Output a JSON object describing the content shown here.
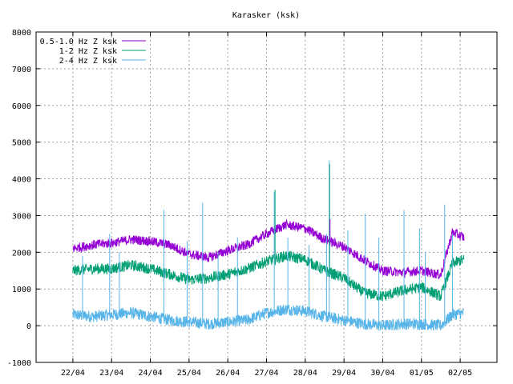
{
  "chart_data": {
    "type": "line",
    "title": "Karasker (ksk)",
    "xlabel": "",
    "ylabel": "",
    "ylim": [
      -1000,
      8000
    ],
    "xlim": [
      "21/04",
      "02/05"
    ],
    "yticks": [
      "-1000",
      "0",
      "1000",
      "2000",
      "3000",
      "4000",
      "5000",
      "6000",
      "7000",
      "8000"
    ],
    "xticks": [
      "22/04",
      "23/04",
      "24/04",
      "25/04",
      "26/04",
      "27/04",
      "28/04",
      "29/04",
      "30/04",
      "01/05",
      "02/05"
    ],
    "grid": true,
    "legend_position": "top-left",
    "x_days_from_start": [
      0.0,
      0.5,
      1.0,
      1.5,
      2.0,
      2.5,
      3.0,
      3.5,
      4.0,
      4.5,
      5.0,
      5.5,
      6.0,
      6.5,
      7.0,
      7.5,
      8.0,
      8.5,
      9.0,
      9.5,
      9.8,
      10.1
    ],
    "series": [
      {
        "name": "0.5-1.0 Hz Z ksk",
        "color": "#9400d3",
        "values": [
          2100,
          2200,
          2250,
          2350,
          2300,
          2200,
          1950,
          1850,
          2050,
          2200,
          2500,
          2750,
          2650,
          2350,
          2150,
          1800,
          1500,
          1450,
          1500,
          1380,
          2550,
          2400
        ]
      },
      {
        "name": "1-2 Hz Z ksk",
        "color": "#009e73",
        "values": [
          1500,
          1550,
          1550,
          1650,
          1550,
          1400,
          1250,
          1300,
          1400,
          1550,
          1750,
          1900,
          1800,
          1500,
          1300,
          900,
          800,
          950,
          1050,
          800,
          1700,
          1800
        ]
      },
      {
        "name": "2-4 Hz Z ksk",
        "color": "#56b4e9",
        "values": [
          300,
          250,
          300,
          350,
          250,
          150,
          100,
          50,
          100,
          150,
          350,
          450,
          400,
          250,
          150,
          50,
          0,
          50,
          50,
          0,
          300,
          350
        ]
      }
    ],
    "spikes": [
      {
        "series": 2,
        "x": 0.25,
        "y": 1900
      },
      {
        "series": 2,
        "x": 0.95,
        "y": 2500
      },
      {
        "series": 2,
        "x": 1.2,
        "y": 2000
      },
      {
        "series": 2,
        "x": 2.35,
        "y": 3150
      },
      {
        "series": 2,
        "x": 2.95,
        "y": 2300
      },
      {
        "series": 2,
        "x": 3.35,
        "y": 3350
      },
      {
        "series": 2,
        "x": 3.75,
        "y": 2000
      },
      {
        "series": 2,
        "x": 4.25,
        "y": 2400
      },
      {
        "series": 2,
        "x": 5.2,
        "y": 3650
      },
      {
        "series": 2,
        "x": 5.55,
        "y": 2400
      },
      {
        "series": 2,
        "x": 6.1,
        "y": 2200
      },
      {
        "series": 2,
        "x": 6.55,
        "y": 2500
      },
      {
        "series": 2,
        "x": 6.62,
        "y": 4500
      },
      {
        "series": 2,
        "x": 7.1,
        "y": 2600
      },
      {
        "series": 2,
        "x": 7.55,
        "y": 3050
      },
      {
        "series": 2,
        "x": 7.9,
        "y": 2400
      },
      {
        "series": 2,
        "x": 8.55,
        "y": 3150
      },
      {
        "series": 2,
        "x": 8.95,
        "y": 2650
      },
      {
        "series": 2,
        "x": 9.1,
        "y": 2000
      },
      {
        "series": 2,
        "x": 9.6,
        "y": 3300
      },
      {
        "series": 2,
        "x": 9.8,
        "y": 2500
      },
      {
        "series": 1,
        "x": 5.22,
        "y": 3700
      },
      {
        "series": 1,
        "x": 6.63,
        "y": 4400
      },
      {
        "series": 0,
        "x": 6.64,
        "y": 2900
      }
    ]
  }
}
